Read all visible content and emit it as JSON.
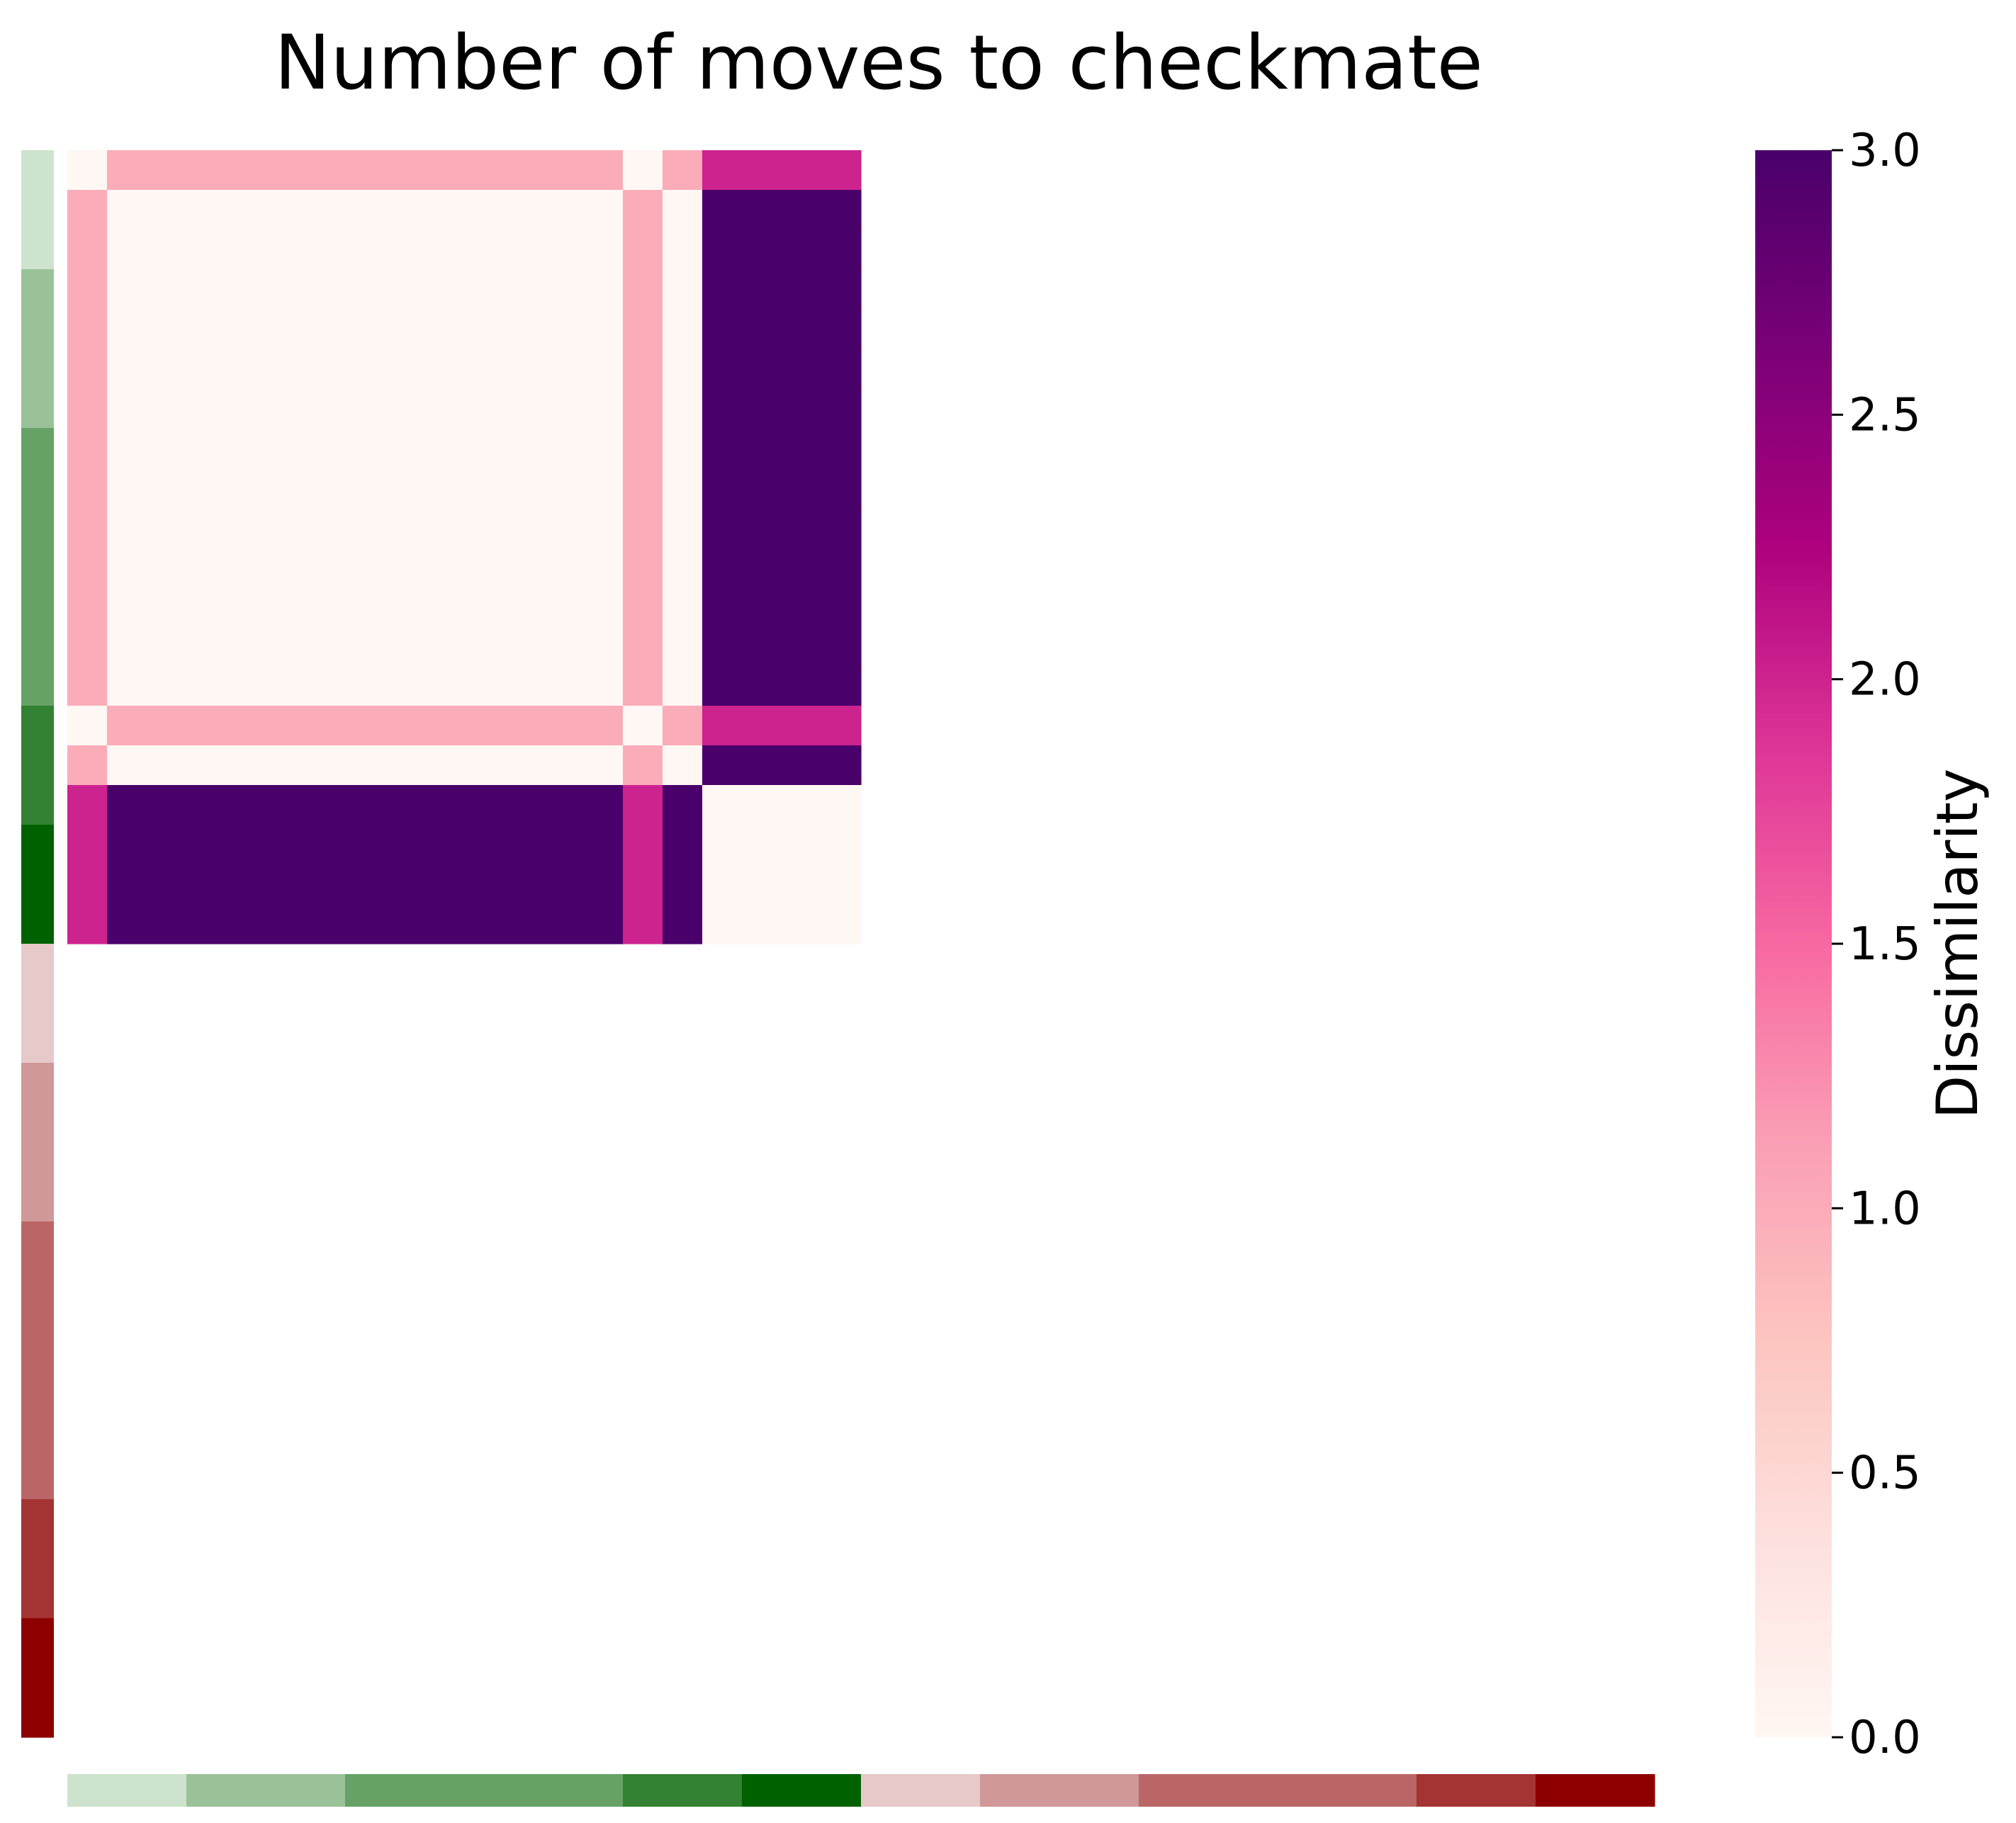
{
  "chart_data": {
    "type": "heatmap",
    "title": "Number of moves to checkmate",
    "n_positions": 40,
    "filled_block_size": 20,
    "matrix_upper_left_20x20": [
      [
        0,
        1,
        1,
        1,
        1,
        1,
        1,
        1,
        1,
        1,
        1,
        1,
        1,
        1,
        0,
        1,
        2,
        2,
        2,
        2
      ],
      [
        1,
        0,
        0,
        0,
        0,
        0,
        0,
        0,
        0,
        0,
        0,
        0,
        0,
        0,
        1,
        0,
        3,
        3,
        3,
        3
      ],
      [
        1,
        0,
        0,
        0,
        0,
        0,
        0,
        0,
        0,
        0,
        0,
        0,
        0,
        0,
        1,
        0,
        3,
        3,
        3,
        3
      ],
      [
        1,
        0,
        0,
        0,
        0,
        0,
        0,
        0,
        0,
        0,
        0,
        0,
        0,
        0,
        1,
        0,
        3,
        3,
        3,
        3
      ],
      [
        1,
        0,
        0,
        0,
        0,
        0,
        0,
        0,
        0,
        0,
        0,
        0,
        0,
        0,
        1,
        0,
        3,
        3,
        3,
        3
      ],
      [
        1,
        0,
        0,
        0,
        0,
        0,
        0,
        0,
        0,
        0,
        0,
        0,
        0,
        0,
        1,
        0,
        3,
        3,
        3,
        3
      ],
      [
        1,
        0,
        0,
        0,
        0,
        0,
        0,
        0,
        0,
        0,
        0,
        0,
        0,
        0,
        1,
        0,
        3,
        3,
        3,
        3
      ],
      [
        1,
        0,
        0,
        0,
        0,
        0,
        0,
        0,
        0,
        0,
        0,
        0,
        0,
        0,
        1,
        0,
        3,
        3,
        3,
        3
      ],
      [
        1,
        0,
        0,
        0,
        0,
        0,
        0,
        0,
        0,
        0,
        0,
        0,
        0,
        0,
        1,
        0,
        3,
        3,
        3,
        3
      ],
      [
        1,
        0,
        0,
        0,
        0,
        0,
        0,
        0,
        0,
        0,
        0,
        0,
        0,
        0,
        1,
        0,
        3,
        3,
        3,
        3
      ],
      [
        1,
        0,
        0,
        0,
        0,
        0,
        0,
        0,
        0,
        0,
        0,
        0,
        0,
        0,
        1,
        0,
        3,
        3,
        3,
        3
      ],
      [
        1,
        0,
        0,
        0,
        0,
        0,
        0,
        0,
        0,
        0,
        0,
        0,
        0,
        0,
        1,
        0,
        3,
        3,
        3,
        3
      ],
      [
        1,
        0,
        0,
        0,
        0,
        0,
        0,
        0,
        0,
        0,
        0,
        0,
        0,
        0,
        1,
        0,
        3,
        3,
        3,
        3
      ],
      [
        1,
        0,
        0,
        0,
        0,
        0,
        0,
        0,
        0,
        0,
        0,
        0,
        0,
        0,
        1,
        0,
        3,
        3,
        3,
        3
      ],
      [
        0,
        1,
        1,
        1,
        1,
        1,
        1,
        1,
        1,
        1,
        1,
        1,
        1,
        1,
        0,
        1,
        2,
        2,
        2,
        2
      ],
      [
        1,
        0,
        0,
        0,
        0,
        0,
        0,
        0,
        0,
        0,
        0,
        0,
        0,
        0,
        1,
        0,
        3,
        3,
        3,
        3
      ],
      [
        2,
        3,
        3,
        3,
        3,
        3,
        3,
        3,
        3,
        3,
        3,
        3,
        3,
        3,
        2,
        3,
        0,
        0,
        0,
        0
      ],
      [
        2,
        3,
        3,
        3,
        3,
        3,
        3,
        3,
        3,
        3,
        3,
        3,
        3,
        3,
        2,
        3,
        0,
        0,
        0,
        0
      ],
      [
        2,
        3,
        3,
        3,
        3,
        3,
        3,
        3,
        3,
        3,
        3,
        3,
        3,
        3,
        2,
        3,
        0,
        0,
        0,
        0
      ],
      [
        2,
        3,
        3,
        3,
        3,
        3,
        3,
        3,
        3,
        3,
        3,
        3,
        3,
        3,
        2,
        3,
        0,
        0,
        0,
        0
      ]
    ],
    "group_color_bar": {
      "groups": [
        {
          "count": 3,
          "color": "#cde3cd"
        },
        {
          "count": 4,
          "color": "#99c299"
        },
        {
          "count": 7,
          "color": "#66a266"
        },
        {
          "count": 3,
          "color": "#338133"
        },
        {
          "count": 3,
          "color": "#006100"
        },
        {
          "count": 3,
          "color": "#e7c9c9"
        },
        {
          "count": 4,
          "color": "#d09898"
        },
        {
          "count": 7,
          "color": "#ba6666"
        },
        {
          "count": 3,
          "color": "#a43333"
        },
        {
          "count": 3,
          "color": "#8e0000"
        }
      ]
    },
    "colorbar": {
      "label": "Dissimilarity",
      "vmin": 0.0,
      "vmax": 3.0,
      "ticks": [
        "0.0",
        "0.5",
        "1.0",
        "1.5",
        "2.0",
        "2.5",
        "3.0"
      ],
      "colormap": [
        "#fff7f3",
        "#fde0dd",
        "#fcc5c0",
        "#fa9fb5",
        "#f768a1",
        "#dd3497",
        "#ae017e",
        "#7a0177",
        "#49006a"
      ]
    }
  }
}
